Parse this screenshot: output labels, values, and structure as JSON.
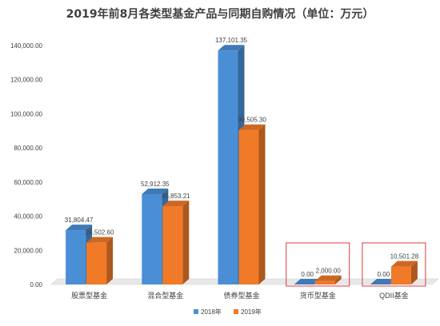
{
  "chart_data": {
    "type": "bar",
    "title": "2019年前8月各类型基金产品与同期自购情况（单位：万元）",
    "categories": [
      "股票型基金",
      "混合型基金",
      "债券型基金",
      "货币型基金",
      "QDII基金"
    ],
    "series": [
      {
        "name": "2018年",
        "values": [
          31804.47,
          52912.35,
          137101.35,
          0.0,
          0.0
        ],
        "labels": [
          "31,804.47",
          "52,912.35",
          "137,101.35",
          "0.00",
          "0.00"
        ],
        "color": "#4a8fd6"
      },
      {
        "name": "2019年",
        "values": [
          24502.6,
          45853.21,
          90505.3,
          2000.0,
          10501.28
        ],
        "labels": [
          "24,502.60",
          "45,853.21",
          "90,505.30",
          "2,000.00",
          "10,501.28"
        ],
        "color": "#f07a28"
      }
    ],
    "y_ticks": [
      "0.00",
      "20,000.00",
      "40,000.00",
      "60,000.00",
      "80,000.00",
      "100,000.00",
      "120,000.00",
      "140,000.00"
    ],
    "ylim": [
      0,
      140000
    ],
    "xlabel": "",
    "ylabel": "",
    "grid": false,
    "legend_position": "bottom",
    "highlighted_categories": [
      "货币型基金",
      "QDII基金"
    ],
    "highlight_color": "#e0393e"
  }
}
